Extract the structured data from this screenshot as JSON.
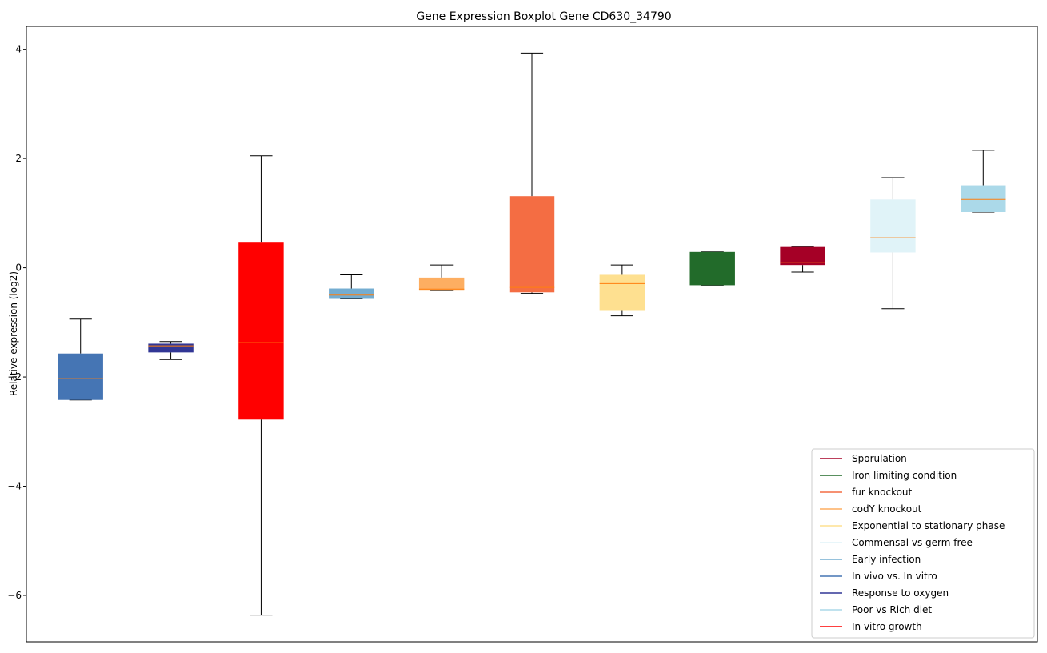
{
  "chart_data": {
    "type": "boxplot",
    "title": "Gene Expression Boxplot Gene CD630_34790",
    "xlabel": "",
    "ylabel": "Relative expression (log2)",
    "ylim": [
      -6.85,
      4.42
    ],
    "yticks": [
      4,
      2,
      0,
      -2,
      -4,
      -6
    ],
    "ytick_labels": [
      "4",
      "2",
      "0",
      "−2",
      "−4",
      "−6"
    ],
    "grid": false,
    "legend_position": "lower-right",
    "median_color": "#ff7f0e",
    "boxes": [
      {
        "category": "In vivo vs. In vitro",
        "color": "#4575b4",
        "whisker_low": -2.42,
        "q1": -2.42,
        "median": -2.03,
        "q3": -1.57,
        "whisker_high": -0.94
      },
      {
        "category": "Response to oxygen",
        "color": "#313695",
        "whisker_low": -1.68,
        "q1": -1.55,
        "median": -1.43,
        "q3": -1.39,
        "whisker_high": -1.35
      },
      {
        "category": "In vitro growth",
        "color": "#ff0000",
        "whisker_low": -6.36,
        "q1": -2.78,
        "median": -1.37,
        "q3": 0.46,
        "whisker_high": 2.05
      },
      {
        "category": "Early infection",
        "color": "#74add1",
        "whisker_low": -0.57,
        "q1": -0.57,
        "median": -0.5,
        "q3": -0.38,
        "whisker_high": -0.13
      },
      {
        "category": "codY knockout",
        "color": "#fdae61",
        "whisker_low": -0.42,
        "q1": -0.42,
        "median": -0.39,
        "q3": -0.18,
        "whisker_high": 0.05
      },
      {
        "category": "fur knockout",
        "color": "#f46d43",
        "whisker_low": -0.47,
        "q1": -0.45,
        "median": -0.36,
        "q3": 1.31,
        "whisker_high": 3.93
      },
      {
        "category": "Exponential to stationary phase",
        "color": "#fee090",
        "whisker_low": -0.88,
        "q1": -0.79,
        "median": -0.29,
        "q3": -0.13,
        "whisker_high": 0.05
      },
      {
        "category": "Iron limiting condition",
        "color": "#226b2a",
        "whisker_low": -0.32,
        "q1": -0.32,
        "median": 0.03,
        "q3": 0.29,
        "whisker_high": 0.29
      },
      {
        "category": "Sporulation",
        "color": "#a50026",
        "whisker_low": -0.08,
        "q1": 0.05,
        "median": 0.1,
        "q3": 0.38,
        "whisker_high": 0.38
      },
      {
        "category": "Commensal vs germ free",
        "color": "#e0f3f8",
        "whisker_low": -0.75,
        "q1": 0.28,
        "median": 0.55,
        "q3": 1.25,
        "whisker_high": 1.65
      },
      {
        "category": "Poor vs Rich diet",
        "color": "#abd9e9",
        "whisker_low": 1.02,
        "q1": 1.02,
        "median": 1.25,
        "q3": 1.51,
        "whisker_high": 2.15
      }
    ],
    "legend": [
      {
        "label": "Sporulation",
        "color": "#a50026"
      },
      {
        "label": "Iron limiting condition",
        "color": "#226b2a"
      },
      {
        "label": "fur knockout",
        "color": "#f46d43"
      },
      {
        "label": "codY knockout",
        "color": "#fdae61"
      },
      {
        "label": "Exponential to stationary phase",
        "color": "#fee090"
      },
      {
        "label": "Commensal vs germ free",
        "color": "#e0f3f8"
      },
      {
        "label": "Early infection",
        "color": "#74add1"
      },
      {
        "label": "In vivo vs. In vitro",
        "color": "#4575b4"
      },
      {
        "label": "Response to oxygen",
        "color": "#313695"
      },
      {
        "label": "Poor vs Rich diet",
        "color": "#abd9e9"
      },
      {
        "label": "In vitro growth",
        "color": "#ff0000"
      }
    ]
  }
}
